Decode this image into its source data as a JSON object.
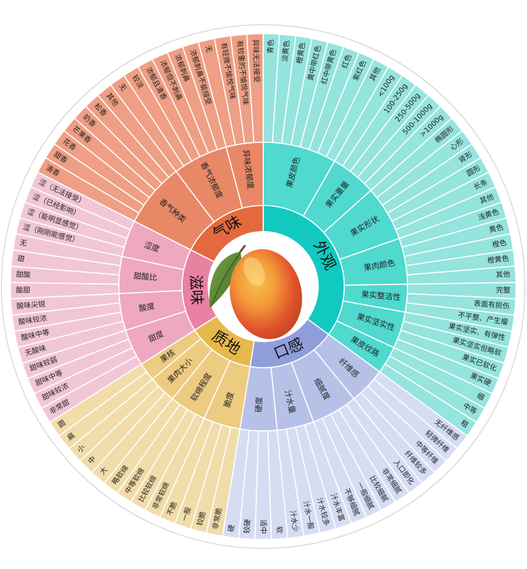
{
  "colors": {
    "background": "#ffffff",
    "ring_stroke": "#ffffff",
    "outer_border": "#d9d9d9"
  },
  "center_image": "mango-image",
  "categories": [
    {
      "name": "外观",
      "color_inner": "#12c9c0",
      "color_mid": "#4fd9cf",
      "color_outer": "#95e4dd",
      "subs": [
        {
          "name": "果皮颜色",
          "items": [
            "青色",
            "淡黄色",
            "橙黄色",
            "黄中带红色",
            "红中带黄色",
            "红色",
            "紫红色",
            "其他"
          ]
        },
        {
          "name": "果实重量",
          "items": [
            "<100g",
            "100-250g",
            "250-500g",
            "500-1000g",
            ">1000g"
          ]
        },
        {
          "name": "果实形状",
          "items": [
            "椭圆形",
            "心形",
            "肾形",
            "圆形",
            "长条",
            "其他"
          ]
        },
        {
          "name": "果肉颜色",
          "items": [
            "浅黄色",
            "黄色",
            "橙色",
            "橙黄色",
            "其他"
          ]
        },
        {
          "name": "果实整洁性",
          "items": [
            "完整",
            "表面有损伤",
            "不平整、产生瘤"
          ]
        },
        {
          "name": "果实坚实性",
          "items": [
            "果实坚实、有弹性",
            "果实坚实但略软",
            "果实已软化",
            "果实硬"
          ]
        },
        {
          "name": "果皮纹路",
          "items": [
            "细",
            "中等",
            "粗"
          ]
        }
      ]
    },
    {
      "name": "口感",
      "color_inner": "#8f9ed9",
      "color_mid": "#b7c1e8",
      "color_outer": "#d6ddf3",
      "subs": [
        {
          "name": "纤维感",
          "items": [
            "无纤维感",
            "轻微纤维",
            "中等纤维",
            "纤维较多"
          ]
        },
        {
          "name": "细腻度",
          "items": [
            "入口即化",
            "非常细腻",
            "比较细腻",
            "一般细腻",
            "不够细腻"
          ]
        },
        {
          "name": "汁水量",
          "items": [
            "汁水丰富",
            "汁水较多",
            "汁水一般",
            "汁水少"
          ]
        },
        {
          "name": "硬度",
          "items": [
            "软",
            "适中",
            "较硬",
            "硬"
          ]
        }
      ]
    },
    {
      "name": "质地",
      "color_inner": "#e6b84d",
      "color_mid": "#edcb80",
      "color_outer": "#f1dcaa",
      "subs": [
        {
          "name": "脆度",
          "items": [
            "非常脆",
            "较脆",
            "一般",
            "不脆"
          ]
        },
        {
          "name": "软绵程度",
          "items": [
            "非常软绵",
            "比较软绵",
            "中等软绵",
            "略软绵"
          ]
        },
        {
          "name": "果肉大小",
          "items": [
            "大",
            "中",
            "小"
          ]
        },
        {
          "name": "果核",
          "items": [
            "扁",
            "圆"
          ]
        }
      ]
    },
    {
      "name": "滋味",
      "color_inner": "#e981a3",
      "color_mid": "#eea8c0",
      "color_outer": "#f2c6d6",
      "subs": [
        {
          "name": "甜度",
          "items": [
            "非常甜",
            "甜味较浓",
            "甜味中等",
            "甜味较弱"
          ]
        },
        {
          "name": "酸度",
          "items": [
            "无酸味",
            "酸味中等",
            "酸味较浓",
            "酸味尖锐"
          ]
        },
        {
          "name": "甜酸比",
          "items": [
            "酸甜",
            "甜酸",
            "甜",
            "无"
          ]
        },
        {
          "name": "涩度",
          "items": [
            "涩（刚刚能感觉）",
            "涩（能明显感觉）",
            "涩（已经影响）",
            "涩（无法接受）"
          ]
        }
      ]
    },
    {
      "name": "气味",
      "color_inner": "#e4693e",
      "color_mid": "#e98866",
      "color_outer": "#ee9f85",
      "subs": [
        {
          "name": "香气种类",
          "items": [
            "清香",
            "甜香",
            "花香",
            "芒果香",
            "奶香",
            "松香",
            "其他"
          ]
        },
        {
          "name": "香气浓郁度",
          "items": [
            "无",
            "较淡",
            "浓郁且清香",
            "浓郁但不刺鼻",
            "浓郁刺鼻",
            "浓郁刺鼻不能接受"
          ]
        },
        {
          "name": "异味浓郁度",
          "items": [
            "无",
            "有轻微不愉悦气味",
            "有较重的不愉悦气味",
            "异味无法接受"
          ]
        }
      ]
    }
  ]
}
